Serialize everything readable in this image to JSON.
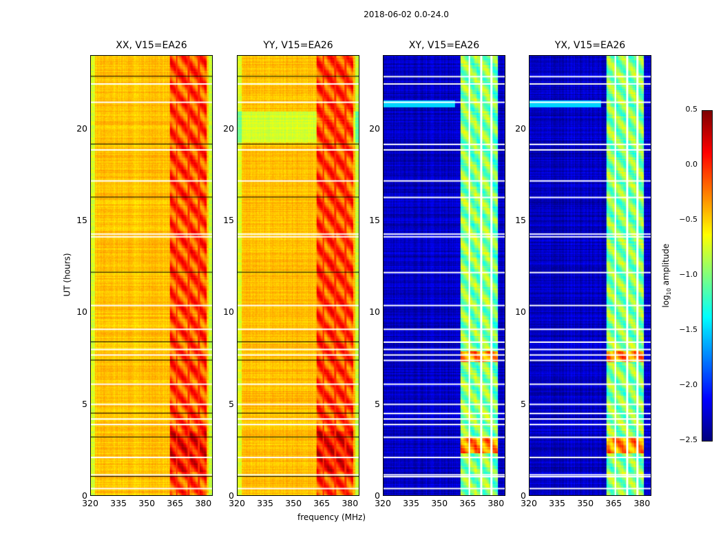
{
  "chart_data": {
    "type": "heatmap",
    "title": "2018-06-02 0.0-24.0",
    "xlabel": "frequency (MHz)",
    "ylabel": "UT (hours)",
    "xlim": [
      320,
      385
    ],
    "ylim": [
      0,
      24
    ],
    "xticks": [
      "320",
      "335",
      "350",
      "365",
      "380"
    ],
    "yticks": [
      "0",
      "5",
      "10",
      "15",
      "20"
    ],
    "colorbar": {
      "label": "log10 amplitude",
      "label_main": "log",
      "label_sub": "10",
      "label_rest": " amplitude",
      "colormap": "jet",
      "range": [
        -2.5,
        0.5
      ],
      "ticks": [
        "0.5",
        "0.0",
        "−0.5",
        "−1.0",
        "−1.5",
        "−2.0",
        "−2.5"
      ]
    },
    "panels": [
      {
        "title": "XX, V15=EA26",
        "baseline": -0.45,
        "band_level": -0.1,
        "band_mhz": [
          362,
          382
        ]
      },
      {
        "title": "YY, V15=EA26",
        "baseline": -0.45,
        "band_level": -0.1,
        "band_mhz": [
          362,
          382
        ]
      },
      {
        "title": "XY, V15=EA26",
        "baseline": -2.3,
        "band_level": -1.0,
        "band_mhz": [
          361,
          381
        ]
      },
      {
        "title": "YX, V15=EA26",
        "baseline": -2.3,
        "band_level": -1.0,
        "band_mhz": [
          361,
          381
        ]
      }
    ],
    "flagged_hours": [
      0.4,
      1.05,
      1.15,
      2.1,
      3.2,
      3.9,
      4.2,
      4.5,
      5.0,
      6.1,
      7.4,
      7.7,
      8.0,
      8.4,
      9.1,
      10.4,
      12.2,
      14.15,
      14.3,
      16.3,
      17.2,
      18.9,
      19.2,
      21.5,
      22.5,
      22.9
    ],
    "band_gaps_mhz": [
      365.8,
      372.2,
      377.8
    ]
  }
}
